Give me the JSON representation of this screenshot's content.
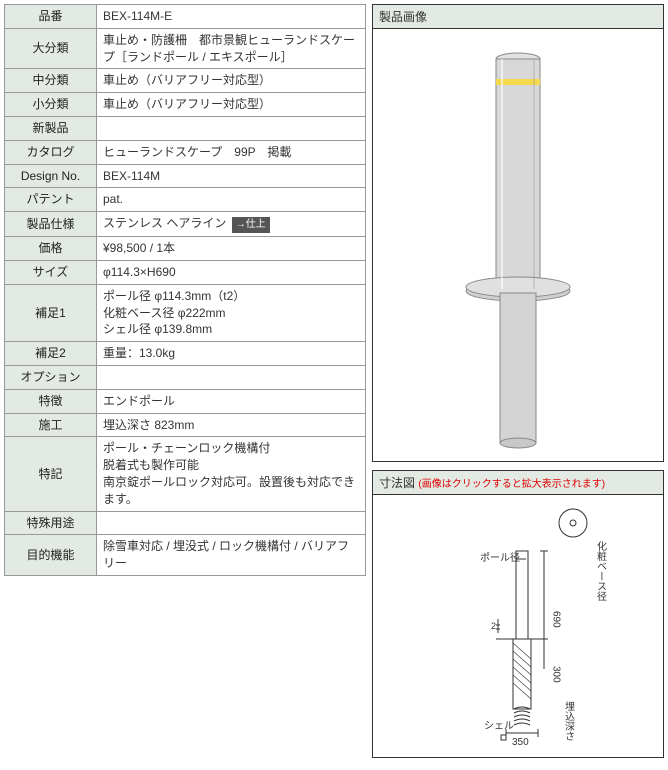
{
  "spec_rows": [
    {
      "label": "品番",
      "value": "BEX-114M-E"
    },
    {
      "label": "大分類",
      "value": "車止め・防護柵　都市景観ヒューランドスケープ［ランドポール / エキスポール］"
    },
    {
      "label": "中分類",
      "value": "車止め（バリアフリー対応型）"
    },
    {
      "label": "小分類",
      "value": "車止め（バリアフリー対応型）"
    },
    {
      "label": "新製品",
      "value": ""
    },
    {
      "label": "カタログ",
      "value": "ヒューランドスケープ　99P　掲載"
    },
    {
      "label": "Design No.",
      "value": "BEX-114M"
    },
    {
      "label": "パテント",
      "value": "pat."
    },
    {
      "label": "製品仕様",
      "value": "ステンレス ヘアライン",
      "tag": "→仕上"
    },
    {
      "label": "価格",
      "value": "¥98,500 / 1本"
    },
    {
      "label": "サイズ",
      "value": "φ114.3×H690"
    },
    {
      "label": "補足1",
      "value": "ポール径 φ114.3mm（t2）\n化粧ベース径 φ222mm\nシェル径 φ139.8mm"
    },
    {
      "label": "補足2",
      "value": "重量：13.0kg"
    },
    {
      "label": "オプション",
      "value": ""
    },
    {
      "label": "特徴",
      "value": "エンドポール"
    },
    {
      "label": "施工",
      "value": "埋込深さ 823mm"
    },
    {
      "label": "特記",
      "value": "ポール・チェーンロック機構付\n脱着式も製作可能\n南京錠ポールロック対応可。設置後も対応できます。"
    },
    {
      "label": "特殊用途",
      "value": ""
    },
    {
      "label": "目的機能",
      "value": "除雪車対応 / 埋没式 / ロック機構付 / バリアフリー"
    }
  ],
  "right": {
    "product_title": "製品画像",
    "dim_title": "寸法図",
    "dim_note": "(画像はクリックすると拡大表示されます)"
  },
  "product_svg": {
    "pole_fill": "#d8d8d8",
    "pole_stroke": "#888",
    "band_fill": "#f3d94b",
    "base_fill": "#d0d0d0",
    "base_stroke": "#888",
    "shell_fill": "#d4d4d4"
  },
  "dim_svg": {
    "stroke": "#333",
    "text": "#333",
    "labels": {
      "pole": "ポール径",
      "base": "化粧ベース径",
      "shell": "シェル",
      "h": "690",
      "depth_label": "埋込深さ",
      "d300": "300",
      "d2": "2",
      "w350": "350"
    }
  }
}
